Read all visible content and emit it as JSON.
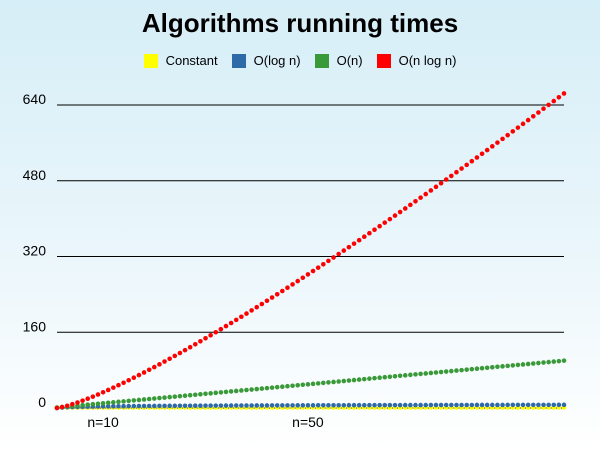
{
  "chart_data": {
    "type": "scatter",
    "title": "Algorithms running times",
    "legend_position": "top",
    "grid": "horizontal",
    "ylim": [
      0,
      640
    ],
    "yticks": [
      0,
      160,
      320,
      480,
      640
    ],
    "xlim": [
      1,
      100
    ],
    "x_annotations": [
      {
        "x": 10,
        "label": "n=10"
      },
      {
        "x": 50,
        "label": "n=50"
      }
    ],
    "x": [
      1,
      2,
      3,
      4,
      5,
      6,
      7,
      8,
      9,
      10,
      11,
      12,
      13,
      14,
      15,
      16,
      17,
      18,
      19,
      20,
      21,
      22,
      23,
      24,
      25,
      26,
      27,
      28,
      29,
      30,
      31,
      32,
      33,
      34,
      35,
      36,
      37,
      38,
      39,
      40,
      41,
      42,
      43,
      44,
      45,
      46,
      47,
      48,
      49,
      50,
      51,
      52,
      53,
      54,
      55,
      56,
      57,
      58,
      59,
      60,
      61,
      62,
      63,
      64,
      65,
      66,
      67,
      68,
      69,
      70,
      71,
      72,
      73,
      74,
      75,
      76,
      77,
      78,
      79,
      80,
      81,
      82,
      83,
      84,
      85,
      86,
      87,
      88,
      89,
      90,
      91,
      92,
      93,
      94,
      95,
      96,
      97,
      98,
      99,
      100
    ],
    "series": [
      {
        "name": "Constant",
        "color": "#ffff00",
        "values": [
          1,
          1,
          1,
          1,
          1,
          1,
          1,
          1,
          1,
          1,
          1,
          1,
          1,
          1,
          1,
          1,
          1,
          1,
          1,
          1,
          1,
          1,
          1,
          1,
          1,
          1,
          1,
          1,
          1,
          1,
          1,
          1,
          1,
          1,
          1,
          1,
          1,
          1,
          1,
          1,
          1,
          1,
          1,
          1,
          1,
          1,
          1,
          1,
          1,
          1,
          1,
          1,
          1,
          1,
          1,
          1,
          1,
          1,
          1,
          1,
          1,
          1,
          1,
          1,
          1,
          1,
          1,
          1,
          1,
          1,
          1,
          1,
          1,
          1,
          1,
          1,
          1,
          1,
          1,
          1,
          1,
          1,
          1,
          1,
          1,
          1,
          1,
          1,
          1,
          1,
          1,
          1,
          1,
          1,
          1,
          1,
          1,
          1,
          1,
          1
        ]
      },
      {
        "name": "O(log n)",
        "color": "#2f6aa8",
        "values": [
          0.0,
          1.0,
          1.58,
          2.0,
          2.32,
          2.58,
          2.81,
          3.0,
          3.17,
          3.32,
          3.46,
          3.58,
          3.7,
          3.81,
          3.91,
          4.0,
          4.09,
          4.17,
          4.25,
          4.32,
          4.39,
          4.46,
          4.52,
          4.58,
          4.64,
          4.7,
          4.75,
          4.81,
          4.86,
          4.91,
          4.95,
          5.0,
          5.04,
          5.09,
          5.13,
          5.17,
          5.21,
          5.25,
          5.29,
          5.32,
          5.36,
          5.39,
          5.43,
          5.46,
          5.49,
          5.52,
          5.55,
          5.58,
          5.61,
          5.64,
          5.67,
          5.7,
          5.73,
          5.75,
          5.78,
          5.81,
          5.83,
          5.86,
          5.88,
          5.91,
          5.93,
          5.95,
          5.98,
          6.0,
          6.02,
          6.04,
          6.07,
          6.09,
          6.11,
          6.13,
          6.15,
          6.17,
          6.19,
          6.21,
          6.23,
          6.25,
          6.27,
          6.29,
          6.3,
          6.32,
          6.34,
          6.36,
          6.38,
          6.39,
          6.41,
          6.43,
          6.44,
          6.46,
          6.48,
          6.49,
          6.51,
          6.52,
          6.54,
          6.55,
          6.57,
          6.58,
          6.6,
          6.61,
          6.63,
          6.64
        ]
      },
      {
        "name": "O(n)",
        "color": "#3a9a3a",
        "values": [
          1,
          2,
          3,
          4,
          5,
          6,
          7,
          8,
          9,
          10,
          11,
          12,
          13,
          14,
          15,
          16,
          17,
          18,
          19,
          20,
          21,
          22,
          23,
          24,
          25,
          26,
          27,
          28,
          29,
          30,
          31,
          32,
          33,
          34,
          35,
          36,
          37,
          38,
          39,
          40,
          41,
          42,
          43,
          44,
          45,
          46,
          47,
          48,
          49,
          50,
          51,
          52,
          53,
          54,
          55,
          56,
          57,
          58,
          59,
          60,
          61,
          62,
          63,
          64,
          65,
          66,
          67,
          68,
          69,
          70,
          71,
          72,
          73,
          74,
          75,
          76,
          77,
          78,
          79,
          80,
          81,
          82,
          83,
          84,
          85,
          86,
          87,
          88,
          89,
          90,
          91,
          92,
          93,
          94,
          95,
          96,
          97,
          98,
          99,
          100
        ]
      },
      {
        "name": "O(n log n)",
        "color": "#ff0000",
        "values": [
          0.0,
          2.0,
          4.75,
          8.0,
          11.61,
          15.51,
          19.65,
          24.0,
          28.53,
          33.22,
          38.05,
          43.02,
          48.11,
          53.3,
          58.6,
          64.0,
          69.49,
          75.06,
          80.71,
          86.44,
          92.24,
          98.11,
          104.04,
          110.04,
          116.1,
          122.21,
          128.38,
          134.6,
          140.88,
          147.21,
          153.58,
          160.0,
          166.47,
          172.97,
          179.53,
          186.12,
          192.75,
          199.42,
          206.13,
          212.88,
          219.66,
          226.48,
          233.33,
          240.21,
          247.13,
          254.08,
          261.06,
          268.08,
          275.12,
          282.19,
          289.29,
          296.42,
          303.58,
          310.76,
          317.97,
          325.21,
          332.47,
          339.76,
          347.08,
          354.41,
          361.77,
          369.16,
          376.57,
          384.0,
          391.45,
          398.93,
          406.43,
          413.95,
          421.49,
          429.05,
          436.63,
          444.23,
          451.86,
          459.5,
          467.16,
          474.84,
          482.54,
          490.26,
          498.0,
          505.75,
          513.53,
          521.32,
          529.13,
          536.95,
          544.8,
          552.66,
          560.54,
          568.43,
          576.34,
          584.27,
          592.21,
          600.17,
          608.14,
          616.13,
          624.14,
          632.16,
          640.19,
          648.24,
          656.3,
          664.39
        ]
      }
    ]
  }
}
